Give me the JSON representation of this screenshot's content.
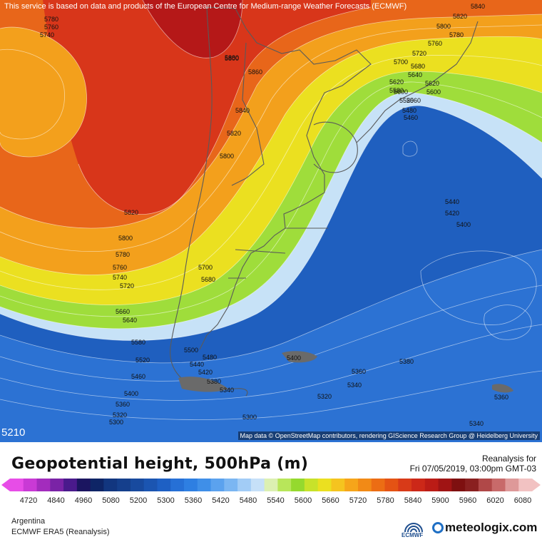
{
  "map": {
    "attribution_top": "This service is based on data and products of the European Centre for Medium-range Weather Forecasts (ECMWF)",
    "attribution_bottom": "Map data © OpenStreetMap contributors, rendering GIScience Research Group @ Heidelberg University",
    "corner_value": "5210",
    "contour_labels": [
      "5780",
      "5760",
      "5740",
      "5800",
      "5880",
      "5860",
      "5840",
      "5820",
      "5800",
      "5820",
      "5800",
      "5780",
      "5760",
      "5740",
      "5720",
      "5660",
      "5640",
      "5580",
      "5520",
      "5460",
      "5400",
      "5360",
      "5320",
      "5300",
      "5700",
      "5680",
      "5620",
      "5600",
      "5500",
      "5480",
      "5440",
      "5420",
      "5380",
      "5340",
      "5840",
      "5820",
      "5800",
      "5780",
      "5760",
      "5720",
      "5700",
      "5680",
      "5640",
      "5620",
      "5580",
      "5600",
      "5560",
      "5520",
      "5480",
      "5460",
      "5440",
      "5420",
      "5400",
      "5400",
      "5380",
      "5360",
      "5340",
      "5320",
      "5300",
      "5360",
      "5340"
    ],
    "colors": {
      "deep_red": "#c41e1e",
      "orange": "#f08a10",
      "yellow": "#ebe020",
      "green": "#9fdd3b",
      "light_blue": "#b9d9f4",
      "blue": "#3f8fe2",
      "dark_blue": "#1f5fbf"
    }
  },
  "header": {
    "title": "Geopotential height, 500hPa (m)",
    "reanalysis_label": "Reanalysis for",
    "datetime": "Fri 07/05/2019, 03:00pm GMT-03"
  },
  "legend": {
    "ticks": [
      "4720",
      "4840",
      "4960",
      "5080",
      "5200",
      "5300",
      "5360",
      "5420",
      "5480",
      "5540",
      "5600",
      "5660",
      "5720",
      "5780",
      "5840",
      "5900",
      "5960",
      "6020",
      "6080"
    ],
    "colors": [
      "#e74de7",
      "#c93ad5",
      "#a32cbd",
      "#7a23a6",
      "#4a1a8c",
      "#1b1560",
      "#0e2566",
      "#12367f",
      "#153f8c",
      "#184a9e",
      "#1b55b1",
      "#1e60c4",
      "#2670d6",
      "#2e7fe2",
      "#3f8fe8",
      "#5ba2ee",
      "#7bb6f2",
      "#a2ccf6",
      "#c6e0f8",
      "#dcf0b2",
      "#b8e65a",
      "#95d92e",
      "#c8e22a",
      "#ebe020",
      "#f5c41f",
      "#f6a51a",
      "#f28a16",
      "#ec6d14",
      "#e45314",
      "#d83a18",
      "#cc2818",
      "#bb1c16",
      "#a01414",
      "#7e1010",
      "#8a2020",
      "#b04848",
      "#c86a6a",
      "#de9999",
      "#f2c2c2"
    ]
  },
  "footer": {
    "region": "Argentina",
    "model": "ECMWF ERA5 (Reanalysis)",
    "ecmwf_logo_text": "ECMWF",
    "brand": "meteologix.com"
  }
}
